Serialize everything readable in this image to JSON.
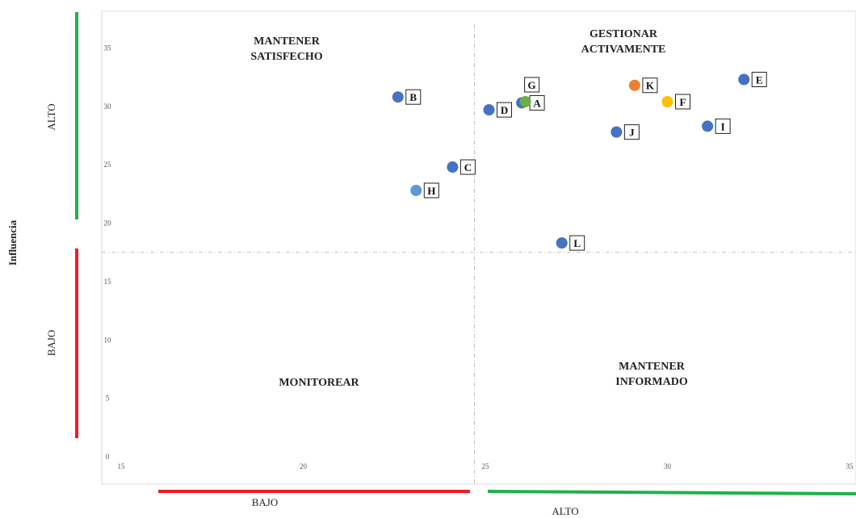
{
  "chart_data": {
    "type": "scatter",
    "title": "",
    "xlabel": "",
    "ylabel": "Influencia",
    "xlim": [
      15,
      35
    ],
    "ylim": [
      0,
      38
    ],
    "x_ticks": [
      "15",
      "20",
      "25",
      "30",
      "35"
    ],
    "y_ticks": [
      "0",
      "5",
      "10",
      "15",
      "20",
      "25",
      "30",
      "35"
    ],
    "divider": {
      "x": 24.7,
      "y": 17.5
    },
    "quadrants": {
      "top_left": [
        "MANTENER",
        "SATISFECHO"
      ],
      "top_right": [
        "GESTIONAR",
        "ACTIVAMENTE"
      ],
      "bottom_left": [
        "MONITOREAR"
      ],
      "bottom_right": [
        "MANTENER",
        "INFORMADO"
      ]
    },
    "y_levels": {
      "high": "ALTO",
      "low": "BAJO"
    },
    "x_levels": {
      "low": "BAJO",
      "high": "ALTO"
    },
    "level_colors": {
      "high": "#1fb24a",
      "low": "#ee1c25"
    },
    "points": [
      {
        "label": "A",
        "x": 26.0,
        "y": 30.3,
        "color": "#4472c4"
      },
      {
        "label": "B",
        "x": 22.6,
        "y": 30.8,
        "color": "#4472c4"
      },
      {
        "label": "C",
        "x": 24.1,
        "y": 24.8,
        "color": "#4472c4"
      },
      {
        "label": "D",
        "x": 25.1,
        "y": 29.7,
        "color": "#4472c4"
      },
      {
        "label": "E",
        "x": 32.1,
        "y": 32.3,
        "color": "#4472c4"
      },
      {
        "label": "F",
        "x": 30.0,
        "y": 30.4,
        "color": "#ffc000"
      },
      {
        "label": "G",
        "x": 26.1,
        "y": 30.4,
        "color": "#70ad47"
      },
      {
        "label": "H",
        "x": 23.1,
        "y": 22.8,
        "color": "#5b9bd5"
      },
      {
        "label": "I",
        "x": 31.1,
        "y": 28.3,
        "color": "#4472c4"
      },
      {
        "label": "J",
        "x": 28.6,
        "y": 27.8,
        "color": "#4472c4"
      },
      {
        "label": "K",
        "x": 29.1,
        "y": 31.8,
        "color": "#ed7d31"
      },
      {
        "label": "L",
        "x": 27.1,
        "y": 18.3,
        "color": "#4472c4"
      }
    ]
  }
}
